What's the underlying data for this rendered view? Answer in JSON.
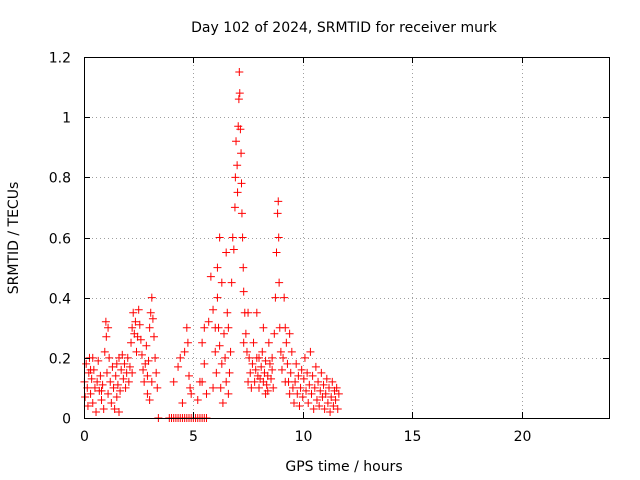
{
  "chart_data": {
    "type": "scatter",
    "title": "Day 102 of 2024, SRMTID for receiver murk",
    "xlabel": "GPS time / hours",
    "ylabel": "SRMTID / TECUs",
    "xlim": [
      0,
      24
    ],
    "ylim": [
      0,
      1.2
    ],
    "x_ticks": [
      0,
      5,
      10,
      15,
      20
    ],
    "x_tick_labels": [
      "0",
      "5",
      "10",
      "15",
      "20"
    ],
    "y_ticks": [
      0,
      0.2,
      0.4,
      0.6,
      0.8,
      1.0,
      1.2
    ],
    "y_tick_labels": [
      "0",
      "0.2",
      "0.4",
      "0.6",
      "0.8",
      "1",
      "1.2"
    ],
    "grid": true,
    "marker": "plus",
    "series": [
      {
        "color": "#ff0000",
        "points": [
          [
            0.02,
            0.12
          ],
          [
            0.05,
            0.07
          ],
          [
            0.1,
            0.18
          ],
          [
            0.15,
            0.1
          ],
          [
            0.18,
            0.04
          ],
          [
            0.22,
            0.15
          ],
          [
            0.25,
            0.2
          ],
          [
            0.3,
            0.08
          ],
          [
            0.35,
            0.13
          ],
          [
            0.4,
            0.05
          ],
          [
            0.45,
            0.16
          ],
          [
            0.5,
            0.1
          ],
          [
            0.55,
            0.02
          ],
          [
            0.6,
            0.12
          ],
          [
            0.65,
            0.19
          ],
          [
            0.7,
            0.09
          ],
          [
            0.75,
            0.14
          ],
          [
            0.8,
            0.06
          ],
          [
            0.85,
            0.11
          ],
          [
            0.9,
            0.03
          ],
          [
            0.95,
            0.22
          ],
          [
            1.0,
            0.32
          ],
          [
            1.02,
            0.27
          ],
          [
            1.05,
            0.15
          ],
          [
            1.1,
            0.08
          ],
          [
            1.15,
            0.2
          ],
          [
            1.2,
            0.12
          ],
          [
            1.25,
            0.05
          ],
          [
            1.3,
            0.17
          ],
          [
            1.35,
            0.1
          ],
          [
            1.4,
            0.03
          ],
          [
            1.45,
            0.14
          ],
          [
            1.5,
            0.07
          ],
          [
            1.55,
            0.11
          ],
          [
            1.6,
            0.02
          ],
          [
            1.65,
            0.09
          ],
          [
            1.7,
            0.16
          ],
          [
            1.75,
            0.21
          ],
          [
            1.8,
            0.13
          ],
          [
            1.85,
            0.18
          ],
          [
            1.9,
            0.1
          ],
          [
            1.95,
            0.15
          ],
          [
            2.0,
            0.2
          ],
          [
            2.05,
            0.12
          ],
          [
            2.1,
            0.17
          ],
          [
            2.15,
            0.25
          ],
          [
            2.2,
            0.3
          ],
          [
            2.25,
            0.35
          ],
          [
            2.3,
            0.28
          ],
          [
            2.35,
            0.32
          ],
          [
            2.4,
            0.22
          ],
          [
            2.45,
            0.27
          ],
          [
            2.5,
            0.36
          ],
          [
            2.55,
            0.31
          ],
          [
            2.6,
            0.26
          ],
          [
            2.65,
            0.21
          ],
          [
            2.7,
            0.16
          ],
          [
            2.75,
            0.12
          ],
          [
            2.8,
            0.18
          ],
          [
            2.85,
            0.24
          ],
          [
            2.9,
            0.14
          ],
          [
            2.95,
            0.19
          ],
          [
            3.0,
            0.3
          ],
          [
            3.05,
            0.35
          ],
          [
            3.1,
            0.4
          ],
          [
            3.15,
            0.33
          ],
          [
            3.2,
            0.27
          ],
          [
            3.25,
            0.2
          ],
          [
            3.3,
            0.15
          ],
          [
            3.35,
            0.1
          ],
          [
            2.9,
            0.08
          ],
          [
            3.0,
            0.06
          ],
          [
            3.1,
            0.12
          ],
          [
            1.5,
            0.18
          ],
          [
            1.6,
            0.2
          ],
          [
            0.3,
            0.16
          ],
          [
            0.4,
            0.2
          ],
          [
            1.1,
            0.3
          ],
          [
            0.8,
            0.09
          ],
          [
            2.2,
            0.15
          ],
          [
            3.4,
            0.0
          ],
          [
            3.9,
            0.0
          ],
          [
            4.0,
            0.0
          ],
          [
            4.1,
            0.0
          ],
          [
            4.2,
            0.0
          ],
          [
            4.3,
            0.0
          ],
          [
            4.4,
            0.0
          ],
          [
            4.5,
            0.0
          ],
          [
            4.6,
            0.0
          ],
          [
            4.7,
            0.0
          ],
          [
            4.8,
            0.0
          ],
          [
            4.9,
            0.0
          ],
          [
            5.0,
            0.0
          ],
          [
            5.1,
            0.0
          ],
          [
            5.2,
            0.0
          ],
          [
            5.3,
            0.0
          ],
          [
            5.4,
            0.0
          ],
          [
            5.5,
            0.0
          ],
          [
            5.6,
            0.0
          ],
          [
            4.1,
            0.12
          ],
          [
            4.3,
            0.17
          ],
          [
            4.6,
            0.22
          ],
          [
            4.7,
            0.3
          ],
          [
            4.8,
            0.14
          ],
          [
            4.9,
            0.08
          ],
          [
            4.5,
            0.05
          ],
          [
            4.75,
            0.25
          ],
          [
            4.85,
            0.1
          ],
          [
            4.4,
            0.2
          ],
          [
            5.3,
            0.12
          ],
          [
            5.4,
            0.25
          ],
          [
            5.5,
            0.18
          ],
          [
            5.6,
            0.08
          ],
          [
            5.7,
            0.32
          ],
          [
            5.8,
            0.47
          ],
          [
            5.9,
            0.36
          ],
          [
            6.0,
            0.22
          ],
          [
            6.05,
            0.15
          ],
          [
            6.1,
            0.4
          ],
          [
            6.15,
            0.3
          ],
          [
            6.2,
            0.24
          ],
          [
            6.25,
            0.1
          ],
          [
            6.3,
            0.18
          ],
          [
            6.35,
            0.05
          ],
          [
            6.4,
            0.28
          ],
          [
            6.45,
            0.2
          ],
          [
            6.5,
            0.12
          ],
          [
            6.55,
            0.35
          ],
          [
            6.6,
            0.08
          ],
          [
            6.65,
            0.15
          ],
          [
            6.7,
            0.22
          ],
          [
            6.75,
            0.45
          ],
          [
            6.8,
            0.6
          ],
          [
            6.85,
            0.56
          ],
          [
            6.9,
            0.7
          ],
          [
            6.92,
            0.8
          ],
          [
            6.95,
            0.92
          ],
          [
            7.0,
            0.84
          ],
          [
            7.02,
            0.75
          ],
          [
            7.05,
            0.97
          ],
          [
            7.08,
            1.06
          ],
          [
            7.1,
            1.15
          ],
          [
            7.12,
            1.08
          ],
          [
            7.15,
            0.96
          ],
          [
            7.18,
            0.88
          ],
          [
            7.2,
            0.78
          ],
          [
            7.22,
            0.68
          ],
          [
            7.25,
            0.6
          ],
          [
            7.28,
            0.5
          ],
          [
            7.3,
            0.42
          ],
          [
            7.35,
            0.35
          ],
          [
            7.4,
            0.28
          ],
          [
            7.45,
            0.22
          ],
          [
            7.5,
            0.35
          ],
          [
            7.55,
            0.2
          ],
          [
            7.6,
            0.15
          ],
          [
            7.65,
            0.1
          ],
          [
            7.7,
            0.18
          ],
          [
            7.75,
            0.25
          ],
          [
            7.8,
            0.12
          ],
          [
            7.85,
            0.16
          ],
          [
            7.9,
            0.2
          ],
          [
            7.95,
            0.14
          ],
          [
            8.0,
            0.1
          ],
          [
            8.05,
            0.13
          ],
          [
            8.1,
            0.17
          ],
          [
            8.15,
            0.22
          ],
          [
            8.2,
            0.12
          ],
          [
            8.25,
            0.15
          ],
          [
            8.3,
            0.19
          ],
          [
            8.35,
            0.11
          ],
          [
            8.4,
            0.14
          ],
          [
            8.45,
            0.25
          ],
          [
            8.5,
            0.18
          ],
          [
            8.55,
            0.13
          ],
          [
            8.6,
            0.16
          ],
          [
            8.65,
            0.1
          ],
          [
            8.7,
            0.28
          ],
          [
            8.75,
            0.4
          ],
          [
            8.8,
            0.55
          ],
          [
            8.85,
            0.68
          ],
          [
            8.88,
            0.72
          ],
          [
            8.9,
            0.6
          ],
          [
            8.92,
            0.45
          ],
          [
            8.95,
            0.3
          ],
          [
            9.0,
            0.22
          ],
          [
            9.05,
            0.16
          ],
          [
            9.1,
            0.2
          ],
          [
            9.15,
            0.4
          ],
          [
            9.2,
            0.3
          ],
          [
            9.25,
            0.25
          ],
          [
            9.3,
            0.18
          ],
          [
            9.35,
            0.12
          ],
          [
            9.4,
            0.08
          ],
          [
            9.45,
            0.15
          ],
          [
            9.5,
            0.22
          ],
          [
            9.55,
            0.1
          ],
          [
            9.6,
            0.05
          ],
          [
            9.65,
            0.12
          ],
          [
            9.7,
            0.18
          ],
          [
            9.75,
            0.08
          ],
          [
            9.8,
            0.14
          ],
          [
            9.85,
            0.04
          ],
          [
            9.9,
            0.1
          ],
          [
            9.95,
            0.16
          ],
          [
            10.0,
            0.07
          ],
          [
            10.05,
            0.13
          ],
          [
            10.1,
            0.2
          ],
          [
            10.15,
            0.09
          ],
          [
            10.2,
            0.15
          ],
          [
            10.25,
            0.05
          ],
          [
            10.3,
            0.11
          ],
          [
            10.35,
            0.22
          ],
          [
            10.4,
            0.08
          ],
          [
            10.45,
            0.14
          ],
          [
            10.5,
            0.03
          ],
          [
            10.55,
            0.1
          ],
          [
            10.6,
            0.17
          ],
          [
            10.65,
            0.06
          ],
          [
            10.7,
            0.12
          ],
          [
            10.75,
            0.04
          ],
          [
            10.8,
            0.09
          ],
          [
            10.85,
            0.15
          ],
          [
            10.9,
            0.07
          ],
          [
            10.95,
            0.11
          ],
          [
            11.0,
            0.03
          ],
          [
            11.05,
            0.08
          ],
          [
            11.1,
            0.13
          ],
          [
            11.15,
            0.05
          ],
          [
            11.2,
            0.1
          ],
          [
            11.25,
            0.02
          ],
          [
            11.3,
            0.07
          ],
          [
            11.35,
            0.12
          ],
          [
            11.4,
            0.04
          ],
          [
            11.45,
            0.09
          ],
          [
            11.5,
            0.06
          ],
          [
            11.55,
            0.1
          ],
          [
            11.6,
            0.03
          ],
          [
            11.65,
            0.08
          ],
          [
            6.2,
            0.6
          ],
          [
            6.5,
            0.55
          ],
          [
            6.3,
            0.45
          ],
          [
            6.0,
            0.3
          ],
          [
            6.1,
            0.5
          ],
          [
            5.5,
            0.3
          ],
          [
            5.4,
            0.12
          ],
          [
            5.2,
            0.06
          ],
          [
            5.9,
            0.1
          ],
          [
            6.6,
            0.3
          ],
          [
            7.5,
            0.12
          ],
          [
            7.3,
            0.25
          ],
          [
            8.0,
            0.2
          ],
          [
            8.2,
            0.3
          ],
          [
            7.9,
            0.35
          ],
          [
            8.4,
            0.09
          ],
          [
            9.2,
            0.12
          ],
          [
            9.4,
            0.28
          ],
          [
            8.6,
            0.2
          ],
          [
            8.3,
            0.08
          ]
        ]
      }
    ]
  }
}
